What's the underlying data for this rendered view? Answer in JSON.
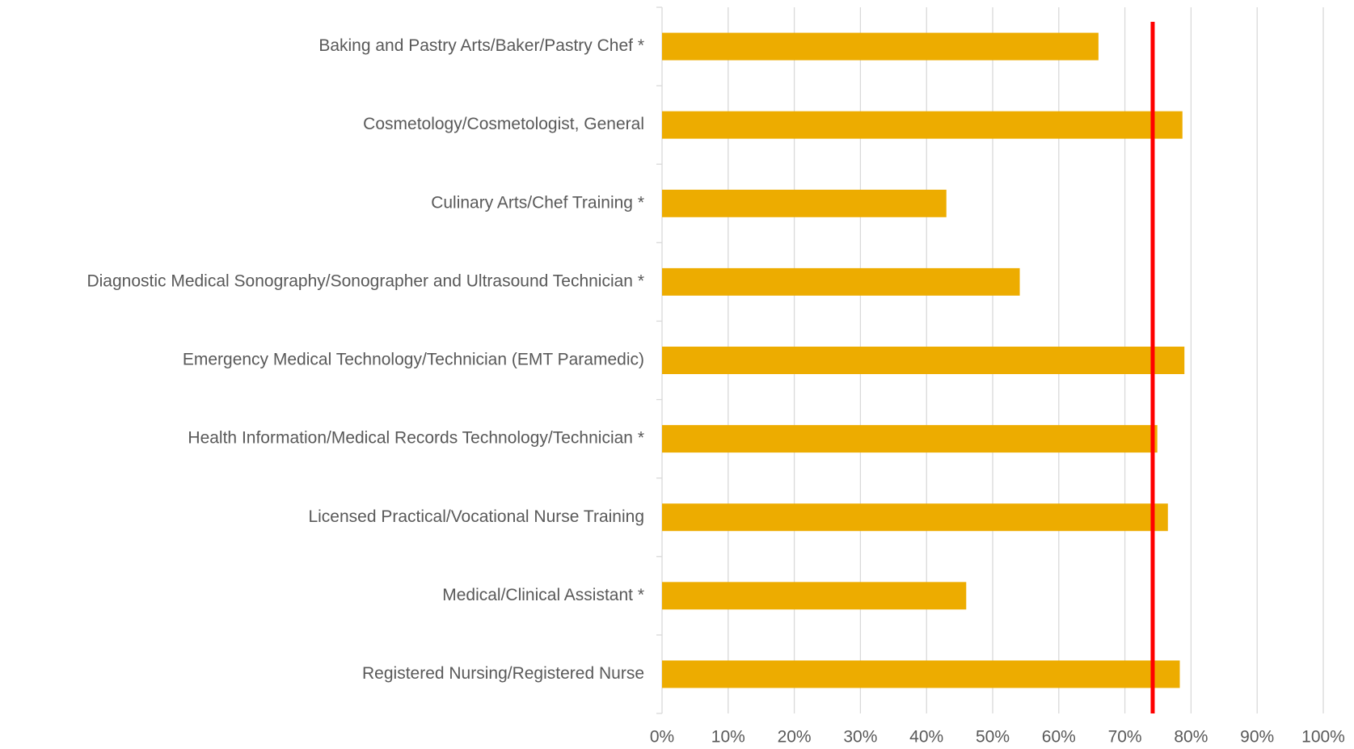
{
  "chart_data": {
    "type": "bar",
    "orientation": "horizontal",
    "categories": [
      "Baking and Pastry Arts/Baker/Pastry Chef *",
      "Cosmetology/Cosmetologist, General",
      "Culinary Arts/Chef Training *",
      "Diagnostic Medical Sonography/Sonographer and Ultrasound  Technician *",
      "Emergency Medical Technology/Technician (EMT Paramedic)",
      "Health Information/Medical Records Technology/Technician *",
      "Licensed Practical/Vocational Nurse Training",
      "Medical/Clinical Assistant *",
      "Registered Nursing/Registered Nurse"
    ],
    "values": [
      66.0,
      78.7,
      43.0,
      54.1,
      79.0,
      74.9,
      76.5,
      46.0,
      78.3
    ],
    "color": "#edac00",
    "xlim": [
      0,
      100
    ],
    "xticks": [
      {
        "value": 0,
        "label": "0%"
      },
      {
        "value": 10,
        "label": "10%"
      },
      {
        "value": 20,
        "label": "20%"
      },
      {
        "value": 30,
        "label": "30%"
      },
      {
        "value": 40,
        "label": "40%"
      },
      {
        "value": 50,
        "label": "50%"
      },
      {
        "value": 60,
        "label": "60%"
      },
      {
        "value": 70,
        "label": "70%"
      },
      {
        "value": 80,
        "label": "80%"
      },
      {
        "value": 90,
        "label": "90%"
      },
      {
        "value": 100,
        "label": "100%"
      }
    ],
    "grid": true,
    "reference_line": {
      "value": 74.2,
      "color": "#ff0000"
    }
  }
}
